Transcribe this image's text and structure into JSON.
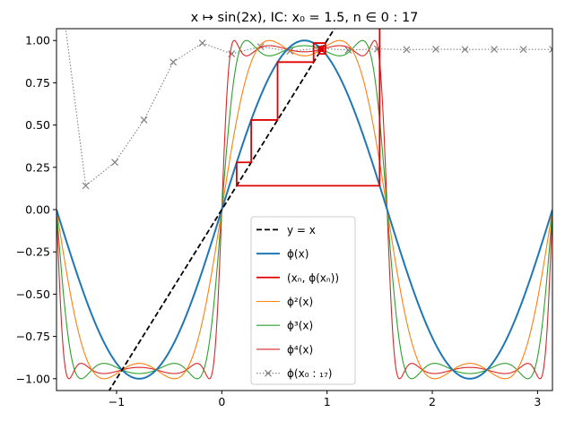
{
  "chart_data": {
    "type": "line",
    "title": "x ↦ sin(2x), IC: x₀ = 1.5, n ∈ 0 : 17",
    "xlabel": "",
    "ylabel": "",
    "xlim": [
      -1.5708,
      3.1416
    ],
    "ylim": [
      -1.07,
      1.07
    ],
    "x_ticks": [
      -1,
      0,
      1,
      2,
      3
    ],
    "x_tick_labels": [
      "−1",
      "0",
      "1",
      "2",
      "3"
    ],
    "y_ticks": [
      -1.0,
      -0.75,
      -0.5,
      -0.25,
      0.0,
      0.25,
      0.5,
      0.75,
      1.0
    ],
    "y_tick_labels": [
      "−1.00",
      "−0.75",
      "−0.50",
      "−0.25",
      "0.00",
      "0.25",
      "0.50",
      "0.75",
      "1.00"
    ],
    "grid": false,
    "legend_position": "lower center",
    "series": [
      {
        "name": "y = x",
        "function": "identity",
        "color": "#000000",
        "dash": "dashed"
      },
      {
        "name": "ϕ(x)",
        "function": "sin(2x)",
        "iterate": 1,
        "color": "#1f77b4"
      },
      {
        "name": "(xₙ, ϕ(xₙ))",
        "kind": "cobweb",
        "color": "#e00000"
      },
      {
        "name": "ϕ²(x)",
        "function": "sin(2x)",
        "iterate": 2,
        "color": "#ff7f0e"
      },
      {
        "name": "ϕ³(x)",
        "function": "sin(2x)",
        "iterate": 3,
        "color": "#2ca02c"
      },
      {
        "name": "ϕ⁴(x)",
        "function": "sin(2x)",
        "iterate": 4,
        "color": "#d62728"
      },
      {
        "name": "ϕ(x₀ : ₁₇)",
        "kind": "orbit",
        "marker": "x",
        "color": "#808080",
        "dash": "dotted",
        "x": [
          -1.5708,
          -1.2935,
          -1.0162,
          -0.739,
          -0.4617,
          -0.1845,
          0.0928,
          0.37,
          0.6473,
          0.9245,
          1.2018,
          1.479,
          1.7563,
          2.0336,
          2.3108,
          2.5881,
          2.8653,
          3.1426
        ],
        "y": [
          1.5,
          0.1411,
          0.2795,
          0.5299,
          0.8724,
          0.985,
          0.9211,
          0.9634,
          0.937,
          0.9538,
          0.9434,
          0.95,
          0.9459,
          0.9485,
          0.9469,
          0.9479,
          0.9472,
          0.9476
        ]
      }
    ],
    "cobweb": {
      "x0": 1.5,
      "x_n": [
        1.5,
        0.1411,
        0.2795,
        0.5299,
        0.8724,
        0.985,
        0.9211,
        0.9634,
        0.937,
        0.9538,
        0.9434,
        0.95,
        0.9459,
        0.9485,
        0.9469,
        0.9479,
        0.9472,
        0.9476
      ]
    }
  }
}
